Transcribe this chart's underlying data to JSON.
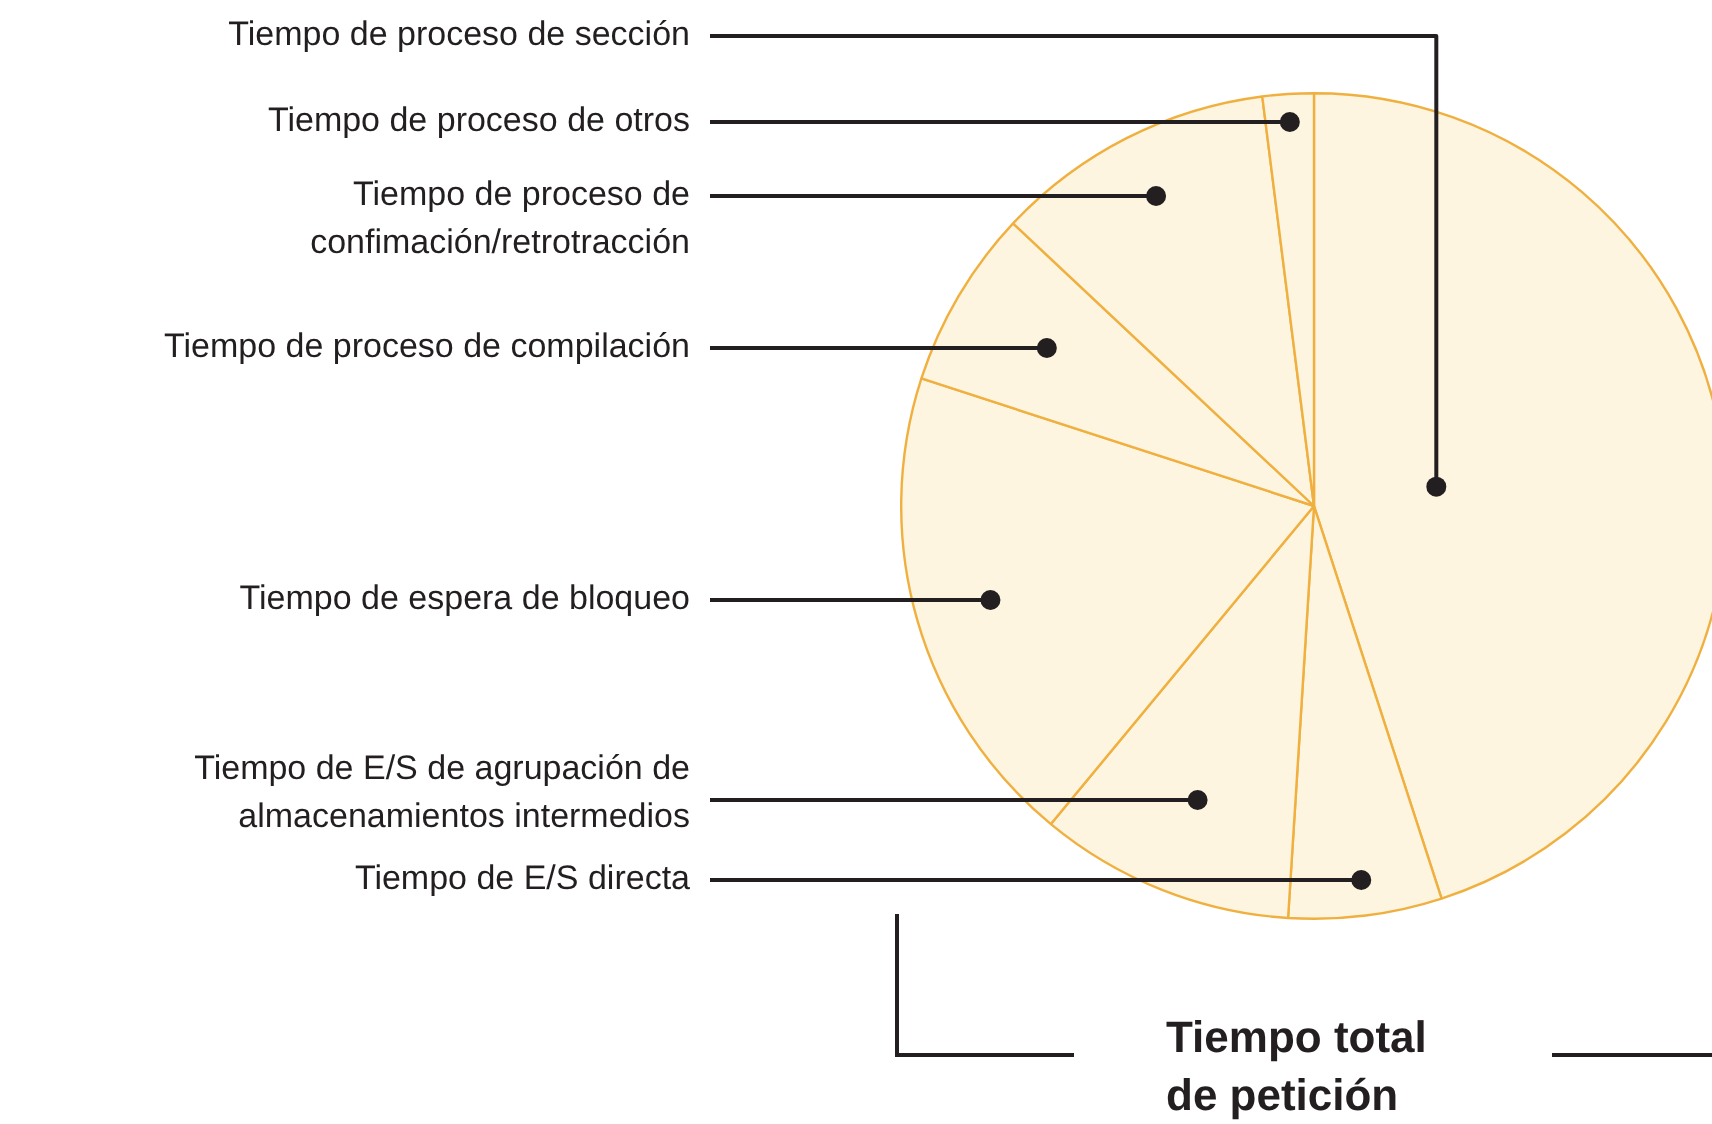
{
  "chart_data": {
    "type": "pie",
    "title": "Tiempo total de petición",
    "categories": [
      "Tiempo de proceso de sección",
      "Tiempo de E/S directa",
      "Tiempo de E/S de agrupación de almacenamientos intermedios",
      "Tiempo de espera de bloqueo",
      "Tiempo de proceso de compilación",
      "Tiempo de proceso de confimación/retrotracción",
      "Tiempo de proceso de otros"
    ],
    "values": [
      45,
      6,
      10,
      19,
      7,
      11,
      2
    ],
    "colors": [
      "#fdf5e0",
      "#fdf5e0",
      "#fdf5e0",
      "#fdf5e0",
      "#fdf5e0",
      "#fdf5e0",
      "#fdf5e0"
    ],
    "legend": false
  }
}
